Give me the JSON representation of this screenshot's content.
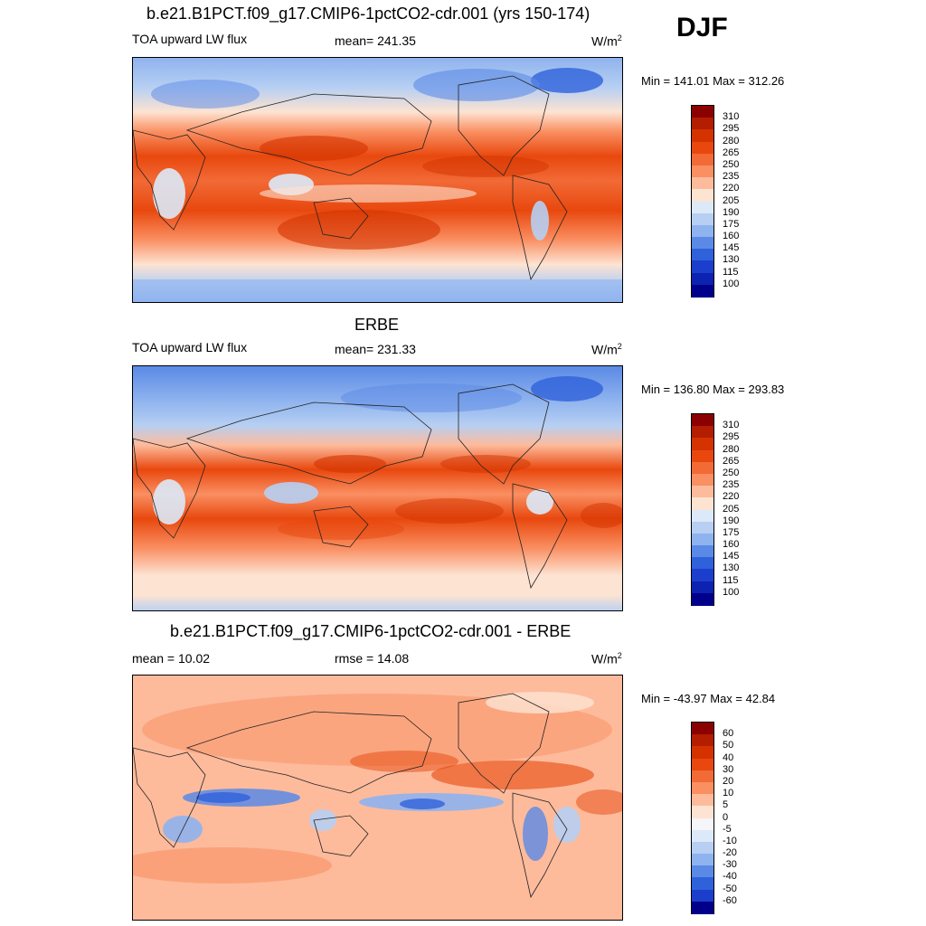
{
  "season": "DJF",
  "panels": [
    {
      "title": "b.e21.B1PCT.f09_g17.CMIP6-1pctCO2-cdr.001 (yrs 150-174)",
      "left_label": "TOA upward LW flux",
      "center_label": "mean= 241.35",
      "units": "W/m",
      "units_sup": "2",
      "minmax": "Min = 141.01 Max = 312.26",
      "colorbar_labels": [
        "310",
        "295",
        "280",
        "265",
        "250",
        "235",
        "220",
        "205",
        "190",
        "175",
        "160",
        "145",
        "130",
        "115",
        "100"
      ],
      "colors": [
        "#8b0000",
        "#b31d00",
        "#d43300",
        "#e8480e",
        "#f26a36",
        "#fa8f62",
        "#fdbb9c",
        "#fde3d2",
        "#dbe9f8",
        "#b6cff3",
        "#8fb3ee",
        "#5b8ae6",
        "#2f61db",
        "#1b3fcc",
        "#0c22b0",
        "#00008b"
      ]
    },
    {
      "title": "ERBE",
      "left_label": "TOA upward LW flux",
      "center_label": "mean= 231.33",
      "units": "W/m",
      "units_sup": "2",
      "minmax": "Min = 136.80 Max = 293.83",
      "colorbar_labels": [
        "310",
        "295",
        "280",
        "265",
        "250",
        "235",
        "220",
        "205",
        "190",
        "175",
        "160",
        "145",
        "130",
        "115",
        "100"
      ],
      "colors": [
        "#8b0000",
        "#b31d00",
        "#d43300",
        "#e8480e",
        "#f26a36",
        "#fa8f62",
        "#fdbb9c",
        "#fde3d2",
        "#dbe9f8",
        "#b6cff3",
        "#8fb3ee",
        "#5b8ae6",
        "#2f61db",
        "#1b3fcc",
        "#0c22b0",
        "#00008b"
      ]
    },
    {
      "title": "b.e21.B1PCT.f09_g17.CMIP6-1pctCO2-cdr.001 - ERBE",
      "left_label": "mean =  10.02",
      "center_label": "rmse =  14.08",
      "units": "W/m",
      "units_sup": "2",
      "minmax": "Min = -43.97 Max =  42.84",
      "colorbar_labels": [
        "60",
        "50",
        "40",
        "30",
        "20",
        "10",
        "5",
        "0",
        "-5",
        "-10",
        "-20",
        "-30",
        "-40",
        "-50",
        "-60"
      ],
      "colors": [
        "#8b0000",
        "#b31d00",
        "#d43300",
        "#e8480e",
        "#f26a36",
        "#fa8f62",
        "#fdbb9c",
        "#fde3d2",
        "#f5f5fa",
        "#dbe9f8",
        "#b6cff3",
        "#8fb3ee",
        "#5b8ae6",
        "#2f61db",
        "#1b3fcc",
        "#00008b"
      ]
    }
  ]
}
